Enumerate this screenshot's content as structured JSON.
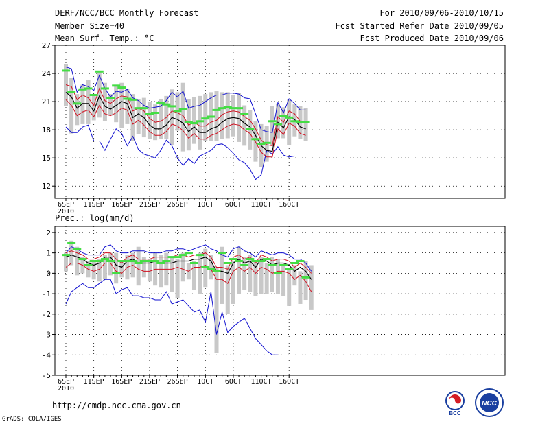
{
  "header": {
    "title": "DERF/NCC/BCC Monthly Forecast",
    "member_size": "Member Size=40",
    "variable": "Mean Surf. Temp.: °C",
    "period": "For 2010/09/06-2010/10/15",
    "refer_date": "Fcst Started Refer Date 2010/09/05",
    "produced_date": "Fcst Produced Date 2010/09/06"
  },
  "footer": {
    "url": "http://cmdp.ncc.cma.gov.cn",
    "grads": "GrADS: COLA/IGES",
    "logo_left_text": "BCC",
    "logo_right_text": "NCC"
  },
  "colors": {
    "mean": "#000000",
    "spread": "#d01020",
    "envelope": "#1010d0",
    "bar": "#c8c8c8",
    "climo": "#44dd44"
  },
  "chart_data": [
    {
      "type": "line",
      "title": "Mean Surf. Temp.: °C",
      "xlabel": "",
      "ylabel": "",
      "x_tick_labels": [
        "6SEP",
        "11SEP",
        "16SEP",
        "21SEP",
        "26SEP",
        "1OCT",
        "6OCT",
        "11OCT",
        "16OCT"
      ],
      "x_year_label": "2010",
      "days": 40,
      "ylim": [
        10.7,
        27
      ],
      "yticks": [
        12,
        15,
        18,
        21,
        24,
        27
      ],
      "series": [
        {
          "name": "ensemble mean",
          "color_key": "mean",
          "values": [
            22.0,
            21.5,
            20.3,
            20.8,
            20.8,
            20.0,
            21.6,
            20.5,
            20.2,
            20.6,
            21.0,
            20.8,
            19.3,
            19.7,
            19.3,
            18.5,
            18.1,
            18.1,
            18.5,
            19.3,
            19.1,
            18.7,
            17.8,
            18.3,
            17.7,
            17.7,
            18.1,
            18.3,
            18.8,
            19.2,
            19.3,
            19.2,
            18.7,
            18.3,
            17.4,
            16.3,
            15.8,
            15.7,
            18.8,
            18.2,
            19.4,
            19.1,
            18.3,
            18.1
          ]
        },
        {
          "name": "upper spread",
          "color_key": "spread",
          "values": [
            22.8,
            22.6,
            21.2,
            21.7,
            21.4,
            20.6,
            22.4,
            21.1,
            20.8,
            21.3,
            21.6,
            21.5,
            20.0,
            20.3,
            20.0,
            19.2,
            18.8,
            18.9,
            19.3,
            20.0,
            19.8,
            19.5,
            18.5,
            18.8,
            18.4,
            18.4,
            18.8,
            19.0,
            19.6,
            19.9,
            20.0,
            19.9,
            19.4,
            19.0,
            18.1,
            16.9,
            16.4,
            16.3,
            19.4,
            18.8,
            20.0,
            19.7,
            18.9,
            18.8
          ]
        },
        {
          "name": "lower spread",
          "color_key": "spread",
          "values": [
            21.2,
            20.6,
            19.5,
            19.9,
            20.1,
            19.4,
            20.6,
            19.7,
            19.5,
            19.8,
            20.3,
            20.1,
            18.6,
            19.0,
            18.5,
            17.8,
            17.4,
            17.4,
            17.8,
            18.6,
            18.4,
            17.9,
            17.1,
            17.6,
            17.0,
            17.0,
            17.4,
            17.6,
            18.0,
            18.4,
            18.6,
            18.5,
            18.0,
            17.6,
            16.7,
            15.6,
            15.1,
            15.1,
            18.1,
            17.5,
            18.7,
            18.4,
            17.6,
            17.4
          ]
        },
        {
          "name": "ensemble max",
          "color_key": "envelope",
          "values": [
            24.7,
            24.5,
            22.0,
            22.8,
            22.6,
            22.2,
            23.8,
            22.4,
            21.5,
            22.1,
            22.0,
            22.3,
            21.4,
            21.1,
            20.6,
            20.3,
            20.4,
            20.5,
            21.1,
            22.0,
            21.5,
            22.1,
            20.3,
            20.5,
            20.6,
            21.0,
            21.4,
            21.7,
            21.7,
            21.9,
            21.9,
            21.8,
            21.4,
            21.3,
            19.7,
            18.0,
            17.8,
            17.7,
            20.9,
            19.8,
            21.3,
            20.8,
            20.1,
            20.1
          ]
        },
        {
          "name": "ensemble min",
          "color_key": "envelope",
          "values": [
            18.3,
            17.7,
            17.7,
            18.3,
            18.5,
            16.8,
            16.8,
            15.8,
            17.0,
            18.1,
            17.6,
            16.3,
            17.3,
            15.9,
            15.4,
            15.2,
            15.0,
            15.8,
            16.9,
            16.3,
            15.0,
            14.2,
            14.9,
            14.4,
            15.2,
            15.5,
            15.8,
            16.4,
            16.5,
            16.1,
            15.5,
            14.8,
            14.5,
            13.8,
            12.7,
            13.2,
            15.8,
            15.4,
            16.2,
            15.3,
            15.1,
            15.2
          ]
        },
        {
          "name": "ensemble range bars (top)",
          "color_key": "bar",
          "values": [
            25.0,
            23.5,
            21.8,
            22.8,
            23.3,
            21.8,
            24.2,
            23.0,
            21.8,
            22.8,
            23.0,
            22.4,
            21.8,
            21.3,
            21.4,
            21.0,
            20.7,
            21.3,
            21.6,
            22.3,
            22.0,
            23.0,
            21.3,
            21.5,
            21.6,
            21.8,
            22.0,
            22.1,
            22.0,
            22.0,
            21.7,
            21.9,
            20.6,
            20.1,
            18.9,
            18.6,
            18.4,
            20.5,
            20.8,
            20.4,
            21.2,
            20.7,
            20.5,
            20.3
          ]
        },
        {
          "name": "ensemble range bars (bottom)",
          "color_key": "bar",
          "values": [
            20.5,
            17.6,
            18.5,
            18.6,
            18.6,
            19.0,
            19.3,
            18.9,
            19.5,
            18.8,
            18.2,
            18.6,
            16.8,
            17.5,
            17.2,
            17.0,
            16.9,
            17.0,
            17.0,
            16.4,
            17.9,
            15.7,
            15.8,
            16.5,
            15.9,
            16.8,
            16.8,
            16.8,
            17.0,
            17.1,
            17.3,
            16.7,
            16.3,
            15.9,
            14.6,
            14.0,
            14.6,
            16.3,
            17.1,
            17.1,
            16.4,
            17.3,
            17.0,
            16.8
          ]
        },
        {
          "name": "climatology",
          "color_key": "climo",
          "values": [
            24.3,
            22.0,
            20.8,
            22.3,
            22.4,
            21.7,
            24.2,
            22.4,
            21.4,
            22.7,
            22.5,
            21.3,
            21.2,
            20.3,
            20.3,
            19.7,
            19.8,
            20.9,
            20.7,
            20.5,
            20.0,
            20.2,
            18.8,
            18.7,
            18.9,
            19.2,
            19.4,
            20.1,
            20.3,
            20.4,
            20.3,
            20.3,
            19.7,
            18.1,
            17.0,
            16.5,
            16.6,
            18.9,
            18.6,
            19.5,
            19.3,
            18.9,
            18.8,
            18.8
          ]
        }
      ]
    },
    {
      "type": "line",
      "title": "Prec.: log(mm/d)",
      "xlabel": "",
      "ylabel": "",
      "x_tick_labels": [
        "6SEP",
        "11SEP",
        "16SEP",
        "21SEP",
        "26SEP",
        "1OCT",
        "6OCT",
        "11OCT",
        "16OCT"
      ],
      "x_year_label": "2010",
      "days": 40,
      "ylim": [
        -5,
        2.3
      ],
      "yticks": [
        -5,
        -4,
        -3,
        -2,
        -1,
        0,
        1,
        2
      ],
      "series": [
        {
          "name": "ensemble mean",
          "color_key": "mean",
          "values": [
            0.8,
            0.9,
            0.8,
            0.7,
            0.5,
            0.4,
            0.5,
            0.8,
            0.8,
            0.4,
            0.3,
            0.6,
            0.7,
            0.5,
            0.5,
            0.5,
            0.6,
            0.5,
            0.5,
            0.5,
            0.6,
            0.6,
            0.6,
            0.7,
            0.7,
            0.8,
            0.6,
            0.1,
            0.1,
            0.0,
            0.5,
            0.7,
            0.5,
            0.6,
            0.3,
            0.7,
            0.6,
            0.4,
            0.5,
            0.5,
            0.4,
            0.1,
            0.3,
            0.1,
            -0.3
          ]
        },
        {
          "name": "upper spread",
          "color_key": "spread",
          "values": [
            1.0,
            1.1,
            1.0,
            0.9,
            0.7,
            0.7,
            0.8,
            1.0,
            1.0,
            0.7,
            0.5,
            0.8,
            0.9,
            0.7,
            0.7,
            0.7,
            0.8,
            0.8,
            0.8,
            0.8,
            0.9,
            0.9,
            0.8,
            0.9,
            0.9,
            1.0,
            0.8,
            0.3,
            0.3,
            0.2,
            0.8,
            0.9,
            0.7,
            0.8,
            0.5,
            0.9,
            0.8,
            0.6,
            0.7,
            0.7,
            0.6,
            0.3,
            0.5,
            0.3,
            0.0
          ]
        },
        {
          "name": "lower spread",
          "color_key": "spread",
          "values": [
            0.3,
            0.5,
            0.5,
            0.4,
            0.2,
            0.1,
            0.2,
            0.5,
            0.5,
            0.1,
            0.0,
            0.3,
            0.4,
            0.2,
            0.1,
            0.1,
            0.2,
            0.2,
            0.2,
            0.2,
            0.3,
            0.2,
            0.1,
            0.3,
            0.3,
            0.4,
            0.2,
            -0.3,
            -0.3,
            -0.5,
            0.1,
            0.3,
            0.1,
            0.3,
            0.0,
            0.3,
            0.2,
            0.0,
            0.1,
            0.1,
            0.0,
            -0.3,
            -0.1,
            -0.4,
            -0.9
          ]
        },
        {
          "name": "ensemble max",
          "color_key": "envelope",
          "values": [
            1.0,
            1.3,
            1.2,
            1.0,
            0.9,
            0.9,
            0.9,
            1.3,
            1.4,
            1.1,
            1.0,
            1.0,
            1.1,
            1.1,
            1.1,
            1.0,
            1.0,
            1.0,
            1.1,
            1.1,
            1.2,
            1.2,
            1.1,
            1.2,
            1.3,
            1.4,
            1.2,
            1.1,
            0.9,
            0.8,
            1.2,
            1.3,
            1.1,
            1.0,
            0.8,
            1.1,
            1.0,
            0.9,
            1.0,
            1.0,
            0.9,
            0.7,
            0.7,
            0.5,
            0.1
          ]
        },
        {
          "name": "ensemble min",
          "color_key": "envelope",
          "values": [
            -1.5,
            -0.9,
            -0.7,
            -0.5,
            -0.7,
            -0.7,
            -0.5,
            -0.3,
            -0.3,
            -1.0,
            -0.8,
            -0.7,
            -1.1,
            -1.1,
            -1.2,
            -1.2,
            -1.3,
            -1.3,
            -0.9,
            -1.5,
            -1.4,
            -1.3,
            -1.6,
            -1.9,
            -1.8,
            -2.4,
            -0.9,
            -3.0,
            -1.9,
            -2.9,
            -2.6,
            -2.4,
            -2.2,
            -2.7,
            -3.2,
            -3.5,
            -3.8,
            -4.0,
            -4.0
          ]
        },
        {
          "name": "ensemble range bars (top)",
          "color_key": "bar",
          "values": [
            1.0,
            1.6,
            1.3,
            0.8,
            0.6,
            0.6,
            0.7,
            0.9,
            1.0,
            1.0,
            0.6,
            0.9,
            1.0,
            1.3,
            0.8,
            0.7,
            1.0,
            0.9,
            1.0,
            0.8,
            0.7,
            1.0,
            0.5,
            0.6,
            1.0,
            1.2,
            0.9,
            0.3,
            1.3,
            0.4,
            0.6,
            1.3,
            0.8,
            0.9,
            0.6,
            0.8,
            0.5,
            0.8,
            0.7,
            0.4,
            0.2,
            0.4,
            0.1,
            0.6,
            0.4
          ]
        },
        {
          "name": "ensemble range bars (bottom)",
          "color_key": "bar",
          "values": [
            0.1,
            0.4,
            -0.1,
            0.0,
            -0.2,
            -0.3,
            -0.4,
            -0.3,
            -0.1,
            -0.5,
            -0.2,
            -0.3,
            -0.2,
            -0.6,
            -0.2,
            -0.4,
            -0.6,
            -0.7,
            -0.6,
            -0.9,
            -1.2,
            -0.4,
            -0.3,
            -0.8,
            -1.0,
            -0.7,
            -0.3,
            -3.9,
            -1.5,
            -2.0,
            -1.5,
            -1.0,
            -0.8,
            -0.9,
            -1.1,
            -1.0,
            -1.0,
            -0.9,
            -1.0,
            -1.1,
            -1.6,
            -0.6,
            -1.5,
            -1.3,
            -1.8
          ]
        },
        {
          "name": "climatology",
          "color_key": "climo",
          "values": [
            0.9,
            1.5,
            1.2,
            0.7,
            0.4,
            0.6,
            0.6,
            0.7,
            0.6,
            0.0,
            0.6,
            0.6,
            0.6,
            0.5,
            0.6,
            0.6,
            0.6,
            0.5,
            0.6,
            0.8,
            0.8,
            0.9,
            1.0,
            0.5,
            0.9,
            0.3,
            0.2,
            0.1,
            1.0,
            0.5,
            0.7,
            0.6,
            0.4,
            0.7,
            0.6,
            0.6,
            0.7,
            0.4,
            0.0,
            0.4,
            0.2,
            0.5,
            0.6,
            -0.2
          ]
        }
      ]
    }
  ]
}
